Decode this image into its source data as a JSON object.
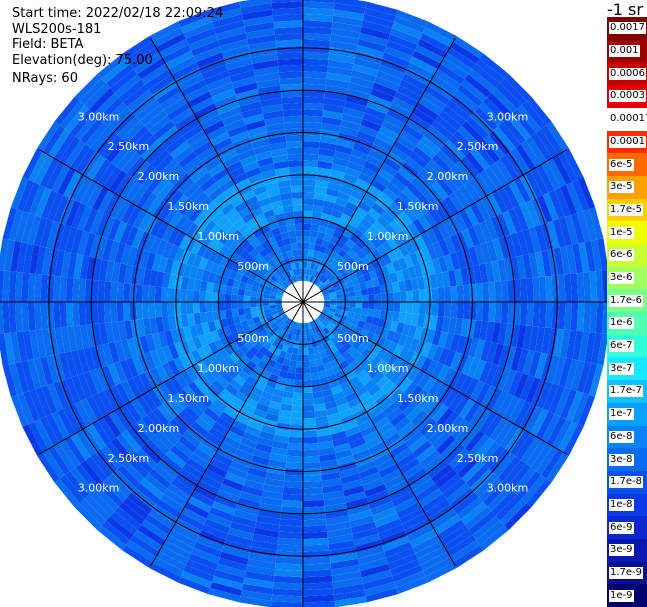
{
  "info": {
    "start_time": "Start time: 2022/02/18 22:09:24",
    "instrument": "WLS200s-181",
    "field": "Field: BETA",
    "elevation": "Elevation(deg): 75.00",
    "nrays": "NRays: 60"
  },
  "colorbar": {
    "unit_label": "-1 sr",
    "ticks": [
      "0.0017",
      "0.001",
      "0.0006",
      "0.0003",
      "0.00017",
      "0.0001",
      "6e-5",
      "3e-5",
      "1.7e-5",
      "1e-5",
      "6e-6",
      "3e-6",
      "1.7e-6",
      "1e-6",
      "6e-7",
      "3e-7",
      "1.7e-7",
      "1e-7",
      "6e-8",
      "3e-8",
      "1.7e-8",
      "1e-8",
      "6e-9",
      "3e-9",
      "1.7e-9",
      "1e-9"
    ],
    "colors": [
      "#7f0000",
      "#a00000",
      "#c40000",
      "#e60000",
      "#ffffff",
      "#ff2a00",
      "#ff6a00",
      "#ffa000",
      "#ffd000",
      "#f0ff00",
      "#c8ff30",
      "#9fff60",
      "#78ff88",
      "#50ffb0",
      "#30ffd8",
      "#18e8ff",
      "#10c0ff",
      "#0aa0ff",
      "#0a82f5",
      "#0a6af0",
      "#0a4ff0",
      "#0a38e6",
      "#0a28cc",
      "#0a18b0",
      "#08108c",
      "#00006e"
    ]
  },
  "chart_data": {
    "type": "heatmap",
    "projection": "polar (PPI scan)",
    "nrays": 60,
    "range_rings_m": [
      500,
      1000,
      1500,
      2000,
      2500,
      3000
    ],
    "range_labels": [
      "500m",
      "1.00km",
      "1.50km",
      "2.00km",
      "2.50km",
      "3.00km"
    ],
    "max_range_m": 3600,
    "field": "BETA",
    "color_scale": "log",
    "value_range": [
      1e-09,
      0.0017
    ],
    "typical_values": {
      "near_range_0_1000m": 1.7e-07,
      "mid_range_1000_2000m": 1e-07,
      "far_range_2000_3600m": 3e-08
    }
  },
  "colors": {
    "background": "#ffffff",
    "grid": "#000000",
    "range_label": "#ffffff"
  }
}
